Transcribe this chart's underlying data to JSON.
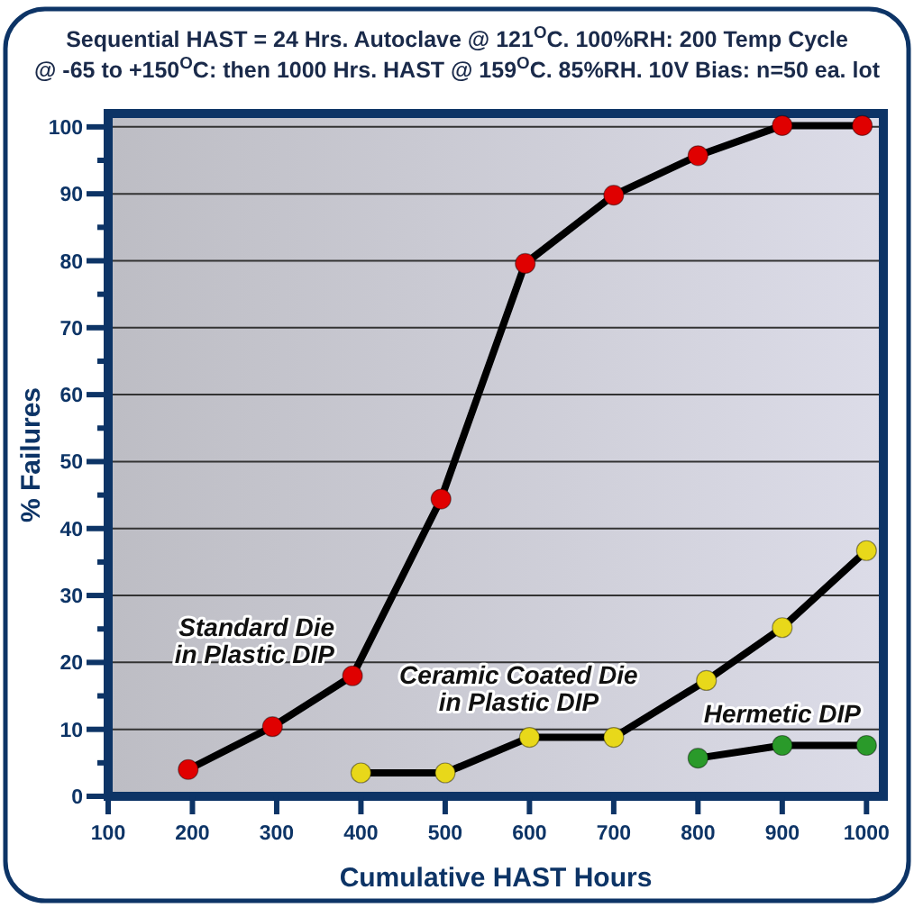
{
  "chart_data": {
    "type": "line",
    "title": "Sequential HAST = 24 Hrs. Autoclave @ 121$^{O}$C. 100%RH: 200 Temp Cycle\n@ -65 to +150$^{O}$C: then 1000 Hrs. HAST @ 159$^{O}$C. 85%RH. 10V Bias: n=50 ea. lot",
    "xlabel": "Cumulative HAST Hours",
    "ylabel": "% Failures",
    "xlim": [
      100,
      1020
    ],
    "xticks": [
      100,
      200,
      300,
      400,
      500,
      600,
      700,
      800,
      900,
      1000
    ],
    "ylim": [
      0,
      102
    ],
    "yticks": [
      0,
      {
        "value": 5,
        "label": null
      },
      10,
      {
        "value": 15,
        "label": null
      },
      20,
      {
        "value": 25,
        "label": null
      },
      30,
      {
        "value": 35,
        "label": null
      },
      40,
      {
        "value": 45,
        "label": null
      },
      50,
      {
        "value": 55,
        "label": null
      },
      60,
      {
        "value": 65,
        "label": null
      },
      70,
      {
        "value": 75,
        "label": null
      },
      80,
      {
        "value": 85,
        "label": null
      },
      90,
      {
        "value": 95,
        "label": null
      },
      100
    ],
    "grid": "y",
    "marker": "circle",
    "line_style": "solid",
    "series": [
      {
        "name": "Standard Die\nin Plastic DIP",
        "color": "#e00000",
        "x": [
          195,
          295,
          390,
          495,
          595,
          700,
          800,
          900,
          995
        ],
        "values": [
          4,
          10.4,
          18,
          44.4,
          79.6,
          89.8,
          95.7,
          100.2,
          100.2
        ]
      },
      {
        "name": "Ceramic Coated Die\nin Plastic DIP",
        "color": "#e8d81a",
        "x": [
          400,
          500,
          600,
          700,
          810,
          900,
          1000
        ],
        "values": [
          3.5,
          3.5,
          8.8,
          8.8,
          17.3,
          25.2,
          36.7
        ]
      },
      {
        "name": "Hermetic DIP",
        "color": "#2a9a2a",
        "x": [
          800,
          900,
          1000
        ],
        "values": [
          5.7,
          7.6,
          7.6
        ]
      }
    ]
  }
}
